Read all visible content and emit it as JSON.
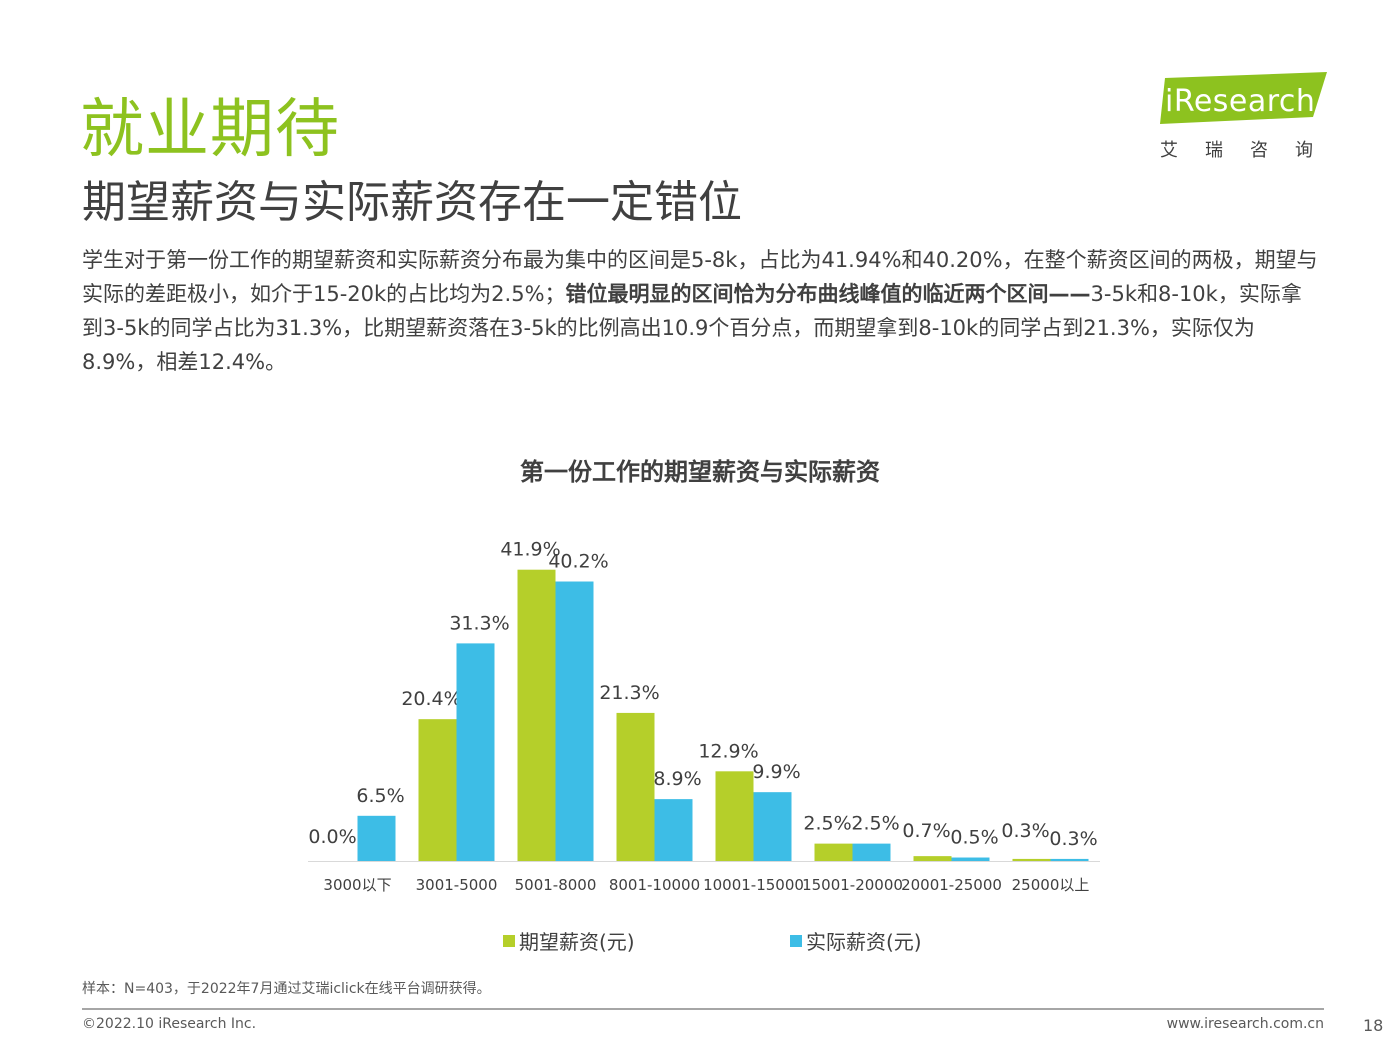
{
  "header": {
    "title": "就业期待",
    "subtitle": "期望薪资与实际薪资存在一定错位"
  },
  "logo": {
    "brand": "iResearch",
    "sub": "艾瑞咨询",
    "color": "#8dc21f"
  },
  "paragraph": {
    "part1": "学生对于第一份工作的期望薪资和实际薪资分布最为集中的区间是5-8k，占比为41.94%和40.20%，在整个薪资区间的两极，期望与实际的差距极小，如介于15-20k的占比均为2.5%；",
    "bold": "错位最明显的区间恰为分布曲线峰值的临近两个区间——",
    "part2": "3-5k和8-10k，实际拿到3-5k的同学占比为31.3%，比期望薪资落在3-5k的比例高出10.9个百分点，而期望拿到8-10k的同学占到21.3%，实际仅为8.9%，相差12.4%。"
  },
  "chart_data": {
    "type": "bar",
    "title": "第一份工作的期望薪资与实际薪资",
    "categories": [
      "3000以下",
      "3001-5000",
      "5001-8000",
      "8001-10000",
      "10001-15000",
      "15001-20000",
      "20001-25000",
      "25000以上"
    ],
    "series": [
      {
        "name": "期望薪资(元)",
        "color": "#b5cf2a",
        "values": [
          0.0,
          20.4,
          41.9,
          21.3,
          12.9,
          2.5,
          0.7,
          0.3
        ],
        "labels": [
          "0.0%",
          "20.4%",
          "41.9%",
          "21.3%",
          "12.9%",
          "2.5%",
          "0.7%",
          "0.3%"
        ]
      },
      {
        "name": "实际薪资(元)",
        "color": "#3dbde6",
        "values": [
          6.5,
          31.3,
          40.2,
          8.9,
          9.9,
          2.5,
          0.5,
          0.3
        ],
        "labels": [
          "6.5%",
          "31.3%",
          "40.2%",
          "8.9%",
          "9.9%",
          "2.5%",
          "0.5%",
          "0.3%"
        ]
      }
    ],
    "ylim": [
      0,
      42
    ],
    "grid": false,
    "legend": "bottom"
  },
  "footer": {
    "note": "样本：N=403，于2022年7月通过艾瑞iclick在线平台调研获得。",
    "copyright": "©2022.10 iResearch Inc.",
    "website": "www.iresearch.com.cn",
    "page": "18"
  }
}
